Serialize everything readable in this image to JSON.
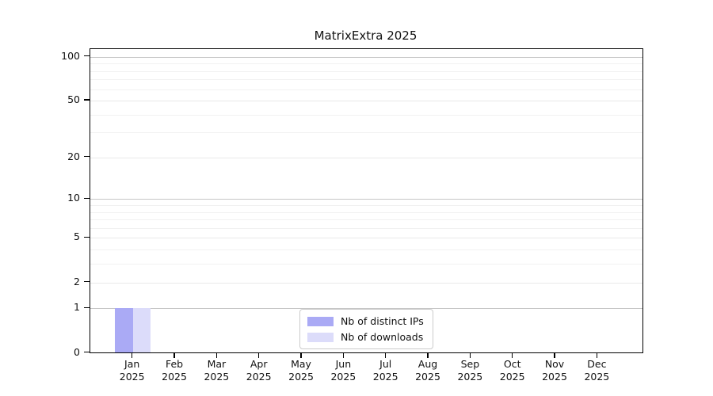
{
  "chart_data": {
    "type": "bar",
    "title": "MatrixExtra 2025",
    "categories": [
      {
        "month": "Jan",
        "year": "2025"
      },
      {
        "month": "Feb",
        "year": "2025"
      },
      {
        "month": "Mar",
        "year": "2025"
      },
      {
        "month": "Apr",
        "year": "2025"
      },
      {
        "month": "May",
        "year": "2025"
      },
      {
        "month": "Jun",
        "year": "2025"
      },
      {
        "month": "Jul",
        "year": "2025"
      },
      {
        "month": "Aug",
        "year": "2025"
      },
      {
        "month": "Sep",
        "year": "2025"
      },
      {
        "month": "Oct",
        "year": "2025"
      },
      {
        "month": "Nov",
        "year": "2025"
      },
      {
        "month": "Dec",
        "year": "2025"
      }
    ],
    "series": [
      {
        "name": "Nb of distinct IPs",
        "color": "#aaaaf5",
        "values": [
          1,
          0,
          0,
          0,
          0,
          0,
          0,
          0,
          0,
          0,
          0,
          0
        ]
      },
      {
        "name": "Nb of downloads",
        "color": "#dcdcfa",
        "values": [
          1,
          0,
          0,
          0,
          0,
          0,
          0,
          0,
          0,
          0,
          0,
          0
        ]
      }
    ],
    "y_axis": {
      "tick_labels": [
        "0",
        "1",
        "2",
        "5",
        "10",
        "20",
        "50",
        "100"
      ],
      "ticks": [
        0,
        1,
        2,
        5,
        10,
        20,
        50,
        100
      ],
      "minor_gridlines": [
        3,
        4,
        6,
        7,
        8,
        9,
        30,
        40,
        60,
        70,
        80,
        90
      ],
      "scale": "log1p"
    },
    "xlabel": "",
    "ylabel": "",
    "legend": {
      "position": "bottom-center",
      "border_color": "#cccccc"
    },
    "grid": "horizontal"
  }
}
